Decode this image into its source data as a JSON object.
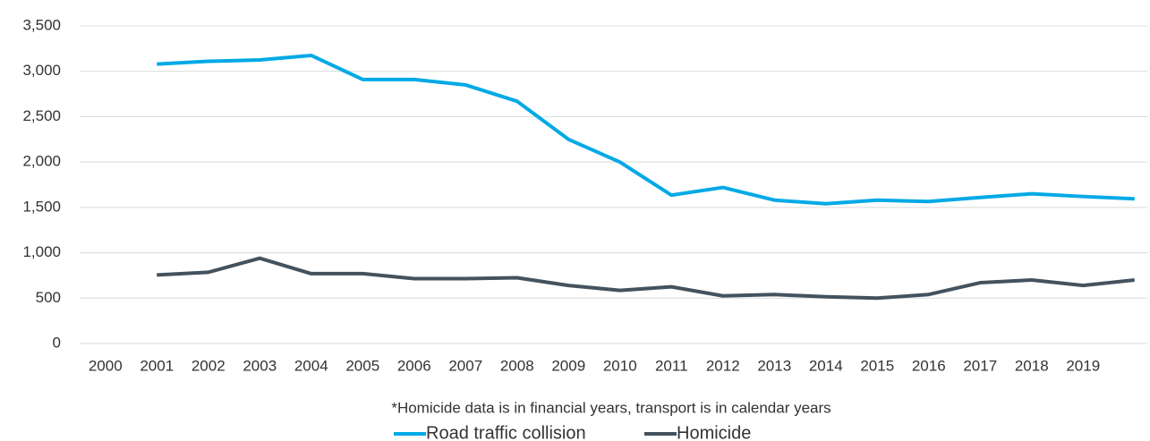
{
  "chart_data": {
    "type": "line",
    "categories": [
      "2000",
      "2001",
      "2002",
      "2003",
      "2004",
      "2005",
      "2006",
      "2007",
      "2008",
      "2009",
      "2010",
      "2011",
      "2012",
      "2013",
      "2014",
      "2015",
      "2016",
      "2017",
      "2018",
      "2019",
      null
    ],
    "series": [
      {
        "name": "Road traffic collision",
        "color": "#00a9e6",
        "values": [
          null,
          3080,
          3110,
          3125,
          3175,
          2910,
          2910,
          2850,
          2670,
          2250,
          2000,
          1635,
          1720,
          1580,
          1540,
          1580,
          1565,
          1610,
          1650,
          1620,
          1595
        ]
      },
      {
        "name": "Homicide",
        "color": "#44525e",
        "values": [
          null,
          755,
          785,
          940,
          770,
          770,
          715,
          715,
          725,
          640,
          585,
          625,
          525,
          540,
          515,
          500,
          540,
          670,
          700,
          640,
          700
        ]
      }
    ],
    "ylim": [
      0,
      3500
    ],
    "yticks": [
      0,
      500,
      {
        "value": 1000,
        "label": "1,000"
      },
      {
        "value": 1500,
        "label": "1,500"
      },
      {
        "value": 2000,
        "label": "2,000"
      },
      {
        "value": 2500,
        "label": "2,500"
      },
      {
        "value": 3000,
        "label": "3,000"
      },
      {
        "value": 3500,
        "label": "3,500"
      }
    ],
    "grid": true,
    "legend": "bottom",
    "annotation": "*Homicide data is in financial years, transport is in calendar years"
  }
}
